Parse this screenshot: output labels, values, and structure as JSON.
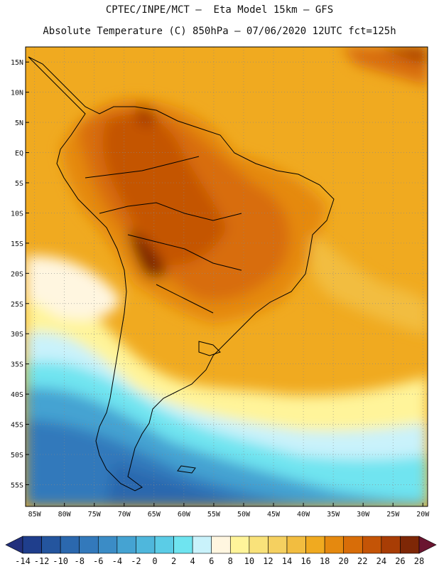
{
  "header": {
    "title_line1": "CPTEC/INPE/MCT –  Eta Model 15km – GFS",
    "title_line2": "Absolute Temperature (C) 850hPa – 07/06/2020 12UTC fct=125h"
  },
  "map": {
    "lat_labels": [
      "15N",
      "10N",
      "5N",
      "EQ",
      "5S",
      "10S",
      "15S",
      "20S",
      "25S",
      "30S",
      "35S",
      "40S",
      "45S",
      "50S",
      "55S"
    ],
    "lon_labels": [
      "85W",
      "80W",
      "75W",
      "70W",
      "65W",
      "60W",
      "55W",
      "50W",
      "45W",
      "40W",
      "35W",
      "30W",
      "25W",
      "20W"
    ],
    "lat_values": [
      15,
      10,
      5,
      0,
      -5,
      -10,
      -15,
      -20,
      -25,
      -30,
      -35,
      -40,
      -45,
      -50,
      -55
    ],
    "lon_values": [
      -85,
      -80,
      -75,
      -70,
      -65,
      -60,
      -55,
      -50,
      -45,
      -40,
      -35,
      -30,
      -25,
      -20
    ],
    "grid": true
  },
  "colorbar": {
    "labels": [
      "-14",
      "-12",
      "-10",
      "-8",
      "-6",
      "-4",
      "-2",
      "0",
      "2",
      "4",
      "6",
      "8",
      "10",
      "12",
      "14",
      "16",
      "18",
      "20",
      "22",
      "24",
      "26",
      "28"
    ],
    "colors": [
      "#1f3e8c",
      "#24559e",
      "#2b68ae",
      "#3379bb",
      "#3b8cc6",
      "#45a3d2",
      "#4fb7dc",
      "#5bcce6",
      "#6fe4f0",
      "#c9f2fb",
      "#fff6e0",
      "#fff49a",
      "#f9e27a",
      "#f5d060",
      "#f2bd40",
      "#f0aa20",
      "#e5890f",
      "#d86d08",
      "#c45406",
      "#a83d05",
      "#7e2706"
    ],
    "under_color": "#22307d",
    "over_color": "#6a1530"
  }
}
